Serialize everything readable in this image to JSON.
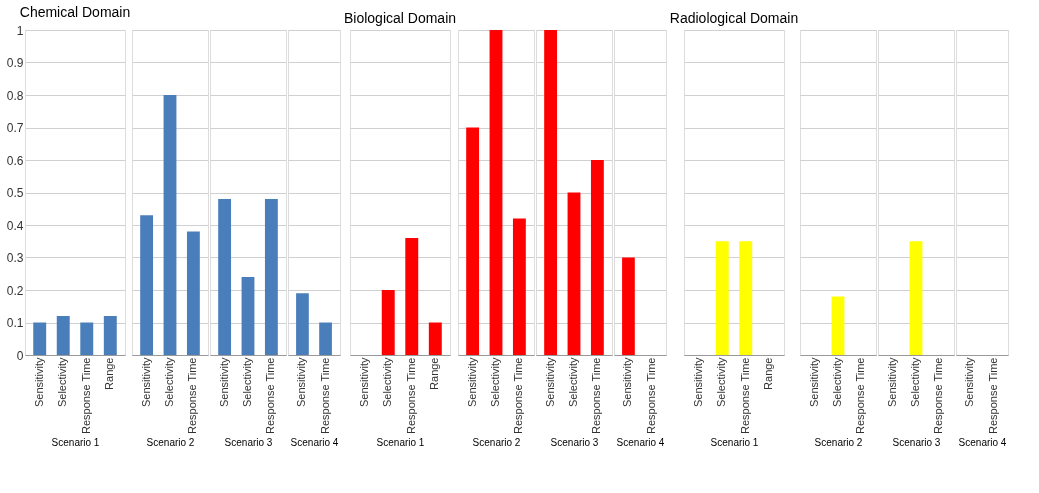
{
  "chart_data": [
    {
      "type": "bar",
      "title": "Chemical Domain",
      "xlabel": "Scenario 1",
      "categories": [
        "Sensitivity",
        "Selectivity",
        "Response Time",
        "Range"
      ],
      "values": [
        0.1,
        0.12,
        0.1,
        0.12
      ],
      "color": "#4a7ebb",
      "ylim": [
        0,
        1
      ],
      "yticks": [
        0,
        0.1,
        0.2,
        0.3,
        0.4,
        0.5,
        0.6,
        0.7,
        0.8,
        0.9,
        1
      ],
      "grid": "y"
    },
    {
      "type": "bar",
      "xlabel": "Scenario 2",
      "categories": [
        "Sensitivity",
        "Selectivity",
        "Response Time"
      ],
      "values": [
        0.43,
        0.8,
        0.38
      ],
      "color": "#4a7ebb",
      "ylim": [
        0,
        1
      ],
      "grid": "y",
      "tick_labels": "x"
    },
    {
      "type": "bar",
      "xlabel": "Scenario 3",
      "categories": [
        "Sensitivity",
        "Selectivity",
        "Response Time"
      ],
      "values": [
        0.48,
        0.24,
        0.48
      ],
      "color": "#4a7ebb",
      "ylim": [
        0,
        1
      ],
      "grid": "y",
      "tick_labels": "x"
    },
    {
      "type": "bar",
      "xlabel": "Scenario 4",
      "categories": [
        "Sensitivity",
        "Response Time"
      ],
      "values": [
        0.19,
        0.1
      ],
      "color": "#4a7ebb",
      "ylim": [
        0,
        1
      ],
      "grid": "y",
      "tick_labels": "x"
    },
    {
      "type": "bar",
      "title": "Biological Domain",
      "xlabel": "Scenario 1",
      "categories": [
        "Sensitivity",
        "Selectivity",
        "Response Time",
        "Range"
      ],
      "values": [
        0,
        0.2,
        0.36,
        0.1
      ],
      "color": "#ff0000",
      "ylim": [
        0,
        1
      ],
      "grid": "y",
      "tick_labels": "x"
    },
    {
      "type": "bar",
      "xlabel": "Scenario 2",
      "categories": [
        "Sensitivity",
        "Selectivity",
        "Response Time"
      ],
      "values": [
        0.7,
        1,
        0.42
      ],
      "color": "#ff0000",
      "ylim": [
        0,
        1
      ],
      "grid": "y",
      "tick_labels": "x"
    },
    {
      "type": "bar",
      "xlabel": "Scenario 3",
      "categories": [
        "Sensitivity",
        "Selectivity",
        "Response Time"
      ],
      "values": [
        1,
        0.5,
        0.6
      ],
      "color": "#ff0000",
      "ylim": [
        0,
        1
      ],
      "grid": "y",
      "tick_labels": "x"
    },
    {
      "type": "bar",
      "xlabel": "Scenario 4",
      "categories": [
        "Sensitivity",
        "Response Time"
      ],
      "values": [
        0.3,
        0
      ],
      "color": "#ff0000",
      "ylim": [
        0,
        1
      ],
      "grid": "y",
      "tick_labels": "x"
    },
    {
      "type": "bar",
      "title": "Radiological Domain",
      "xlabel": "Scenario 1",
      "categories": [
        "Sensitivity",
        "Selectivity",
        "Response Time",
        "Range"
      ],
      "values": [
        0,
        0.35,
        0.35,
        0
      ],
      "color": "#ffff00",
      "ylim": [
        0,
        1
      ],
      "grid": "y",
      "tick_labels": "x"
    },
    {
      "type": "bar",
      "xlabel": "Scenario 2",
      "categories": [
        "Sensitivity",
        "Selectivity",
        "Response Time"
      ],
      "values": [
        0,
        0.18,
        0
      ],
      "color": "#ffff00",
      "ylim": [
        0,
        1
      ],
      "grid": "y",
      "tick_labels": "x"
    },
    {
      "type": "bar",
      "xlabel": "Scenario 3",
      "categories": [
        "Sensitivity",
        "Selectivity",
        "Response Time"
      ],
      "values": [
        0,
        0.35,
        0
      ],
      "color": "#ffff00",
      "ylim": [
        0,
        1
      ],
      "grid": "y",
      "tick_labels": "x"
    },
    {
      "type": "bar",
      "xlabel": "Scenario 4",
      "categories": [
        "Sensitivity",
        "Response Time"
      ],
      "values": [
        0,
        0
      ],
      "color": "#ffff00",
      "ylim": [
        0,
        1
      ],
      "grid": "y",
      "tick_labels": "x"
    }
  ]
}
